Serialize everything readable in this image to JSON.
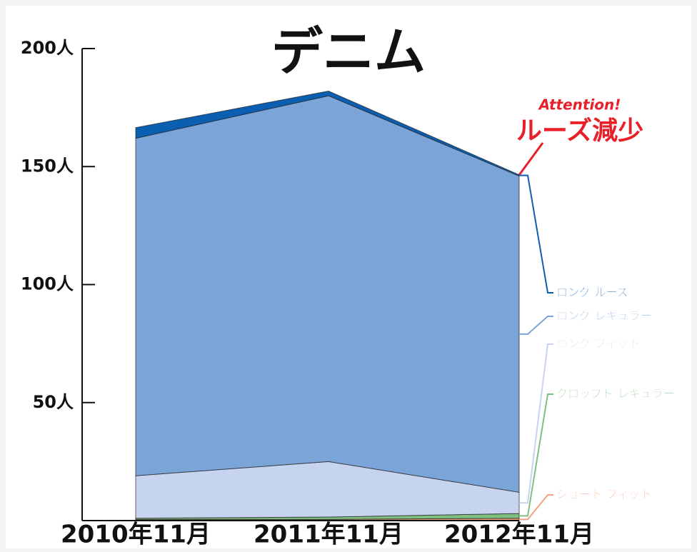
{
  "chart_data": {
    "type": "stacked_area",
    "title": "デニム",
    "categories": [
      "2010年11月",
      "2011年11月",
      "2012年11月"
    ],
    "series": [
      {
        "name": "ショート フィット",
        "color": "#f2a27f",
        "values": [
          0.5,
          0.5,
          1
        ]
      },
      {
        "name": "クロップド レギュラー",
        "color": "#7fbf7f",
        "values": [
          0.5,
          1,
          2
        ]
      },
      {
        "name": "ロング フィット",
        "color": "#c6d4ef",
        "values": [
          18,
          23.5,
          9
        ]
      },
      {
        "name": "ロング レギュラー",
        "color": "#7ba4d9",
        "values": [
          143,
          155,
          134
        ]
      },
      {
        "name": "ロング ルーズ",
        "color": "#0b5fb2",
        "values": [
          4.5,
          2,
          0.5
        ]
      }
    ],
    "ylim": [
      0,
      200
    ],
    "yticks": [
      {
        "value": 50,
        "label": "50人"
      },
      {
        "value": 100,
        "label": "100人"
      },
      {
        "value": 150,
        "label": "150人"
      },
      {
        "value": 200,
        "label": "200人"
      }
    ],
    "annotations": [
      "Attention!",
      "ルーズ減少"
    ]
  }
}
